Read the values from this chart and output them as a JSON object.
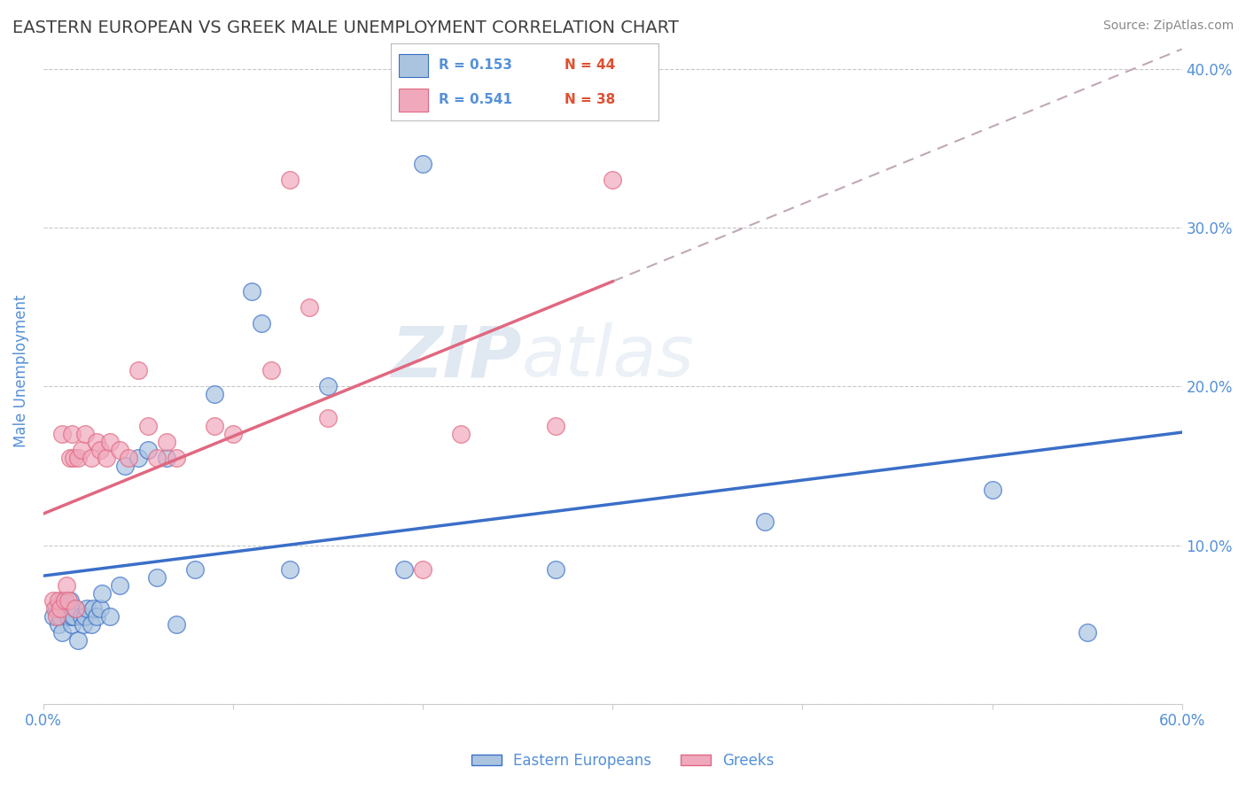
{
  "title": "EASTERN EUROPEAN VS GREEK MALE UNEMPLOYMENT CORRELATION CHART",
  "source": "Source: ZipAtlas.com",
  "ylabel": "Male Unemployment",
  "xlim": [
    0.0,
    0.6
  ],
  "ylim": [
    0.0,
    0.42
  ],
  "xticks": [
    0.0,
    0.1,
    0.2,
    0.3,
    0.4,
    0.5,
    0.6
  ],
  "xticklabels": [
    "0.0%",
    "",
    "",
    "",
    "",
    "",
    "60.0%"
  ],
  "yticks": [
    0.0,
    0.1,
    0.2,
    0.3,
    0.4
  ],
  "yticklabels_right": [
    "",
    "10.0%",
    "20.0%",
    "30.0%",
    "40.0%"
  ],
  "eastern_color": "#aac4e0",
  "greek_color": "#f0a8bc",
  "eastern_line_color": "#3a6fc8",
  "greek_line_color": "#e06880",
  "title_color": "#404040",
  "axis_color": "#5590d8",
  "watermark_color": "#c8d8ec",
  "legend_R_color": "#5590d8",
  "legend_N_color": "#e05030",
  "legend_R_eastern": "R = 0.153",
  "legend_N_eastern": "N = 44",
  "legend_R_greek": "R = 0.541",
  "legend_N_greek": "N = 38",
  "eastern_x": [
    0.005,
    0.007,
    0.008,
    0.009,
    0.01,
    0.01,
    0.01,
    0.012,
    0.013,
    0.014,
    0.015,
    0.015,
    0.016,
    0.017,
    0.018,
    0.02,
    0.021,
    0.022,
    0.023,
    0.025,
    0.026,
    0.028,
    0.03,
    0.031,
    0.035,
    0.04,
    0.043,
    0.05,
    0.055,
    0.06,
    0.065,
    0.07,
    0.08,
    0.09,
    0.11,
    0.115,
    0.13,
    0.15,
    0.19,
    0.2,
    0.27,
    0.38,
    0.5,
    0.55
  ],
  "eastern_y": [
    0.055,
    0.06,
    0.05,
    0.055,
    0.06,
    0.065,
    0.045,
    0.06,
    0.055,
    0.065,
    0.05,
    0.055,
    0.055,
    0.06,
    0.04,
    0.055,
    0.05,
    0.055,
    0.06,
    0.05,
    0.06,
    0.055,
    0.06,
    0.07,
    0.055,
    0.075,
    0.15,
    0.155,
    0.16,
    0.08,
    0.155,
    0.05,
    0.085,
    0.195,
    0.26,
    0.24,
    0.085,
    0.2,
    0.085,
    0.34,
    0.085,
    0.115,
    0.135,
    0.045
  ],
  "greek_x": [
    0.005,
    0.006,
    0.007,
    0.008,
    0.009,
    0.01,
    0.011,
    0.012,
    0.013,
    0.014,
    0.015,
    0.016,
    0.017,
    0.018,
    0.02,
    0.022,
    0.025,
    0.028,
    0.03,
    0.033,
    0.035,
    0.04,
    0.045,
    0.05,
    0.055,
    0.06,
    0.065,
    0.07,
    0.09,
    0.1,
    0.12,
    0.13,
    0.14,
    0.15,
    0.2,
    0.22,
    0.27,
    0.3
  ],
  "greek_y": [
    0.065,
    0.06,
    0.055,
    0.065,
    0.06,
    0.17,
    0.065,
    0.075,
    0.065,
    0.155,
    0.17,
    0.155,
    0.06,
    0.155,
    0.16,
    0.17,
    0.155,
    0.165,
    0.16,
    0.155,
    0.165,
    0.16,
    0.155,
    0.21,
    0.175,
    0.155,
    0.165,
    0.155,
    0.175,
    0.17,
    0.21,
    0.33,
    0.25,
    0.18,
    0.085,
    0.17,
    0.175,
    0.33
  ]
}
